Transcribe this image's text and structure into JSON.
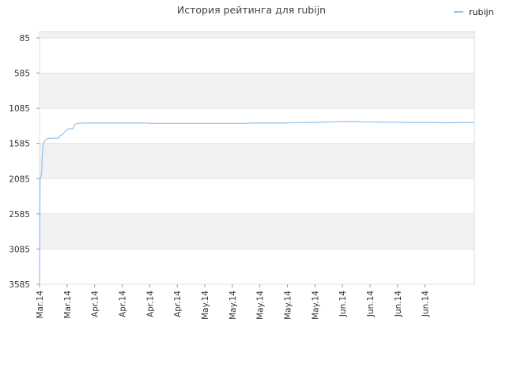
{
  "chart_data": {
    "type": "line",
    "title": "История рейтинга для rubijn",
    "legend": {
      "position": "top-right"
    },
    "series": [
      {
        "name": "rubijn",
        "color": "#90c0f0",
        "points": [
          [
            0,
            3585
          ],
          [
            0.4,
            2760
          ],
          [
            0.8,
            2080
          ],
          [
            2.3,
            2045
          ],
          [
            3.2,
            1960
          ],
          [
            3.4,
            1850
          ],
          [
            4.0,
            1730
          ],
          [
            5.0,
            1590
          ],
          [
            6.0,
            1570
          ],
          [
            8.5,
            1535
          ],
          [
            11.5,
            1515
          ],
          [
            13.0,
            1515
          ],
          [
            18.0,
            1510
          ],
          [
            26.5,
            1510
          ],
          [
            27.5,
            1480
          ],
          [
            32.0,
            1450
          ],
          [
            37.0,
            1400
          ],
          [
            39.0,
            1380
          ],
          [
            42.0,
            1375
          ],
          [
            46.0,
            1375
          ],
          [
            48.0,
            1325
          ],
          [
            52.0,
            1300
          ],
          [
            60.0,
            1295
          ],
          [
            120.0,
            1295
          ],
          [
            150.0,
            1295
          ],
          [
            151.0,
            1300
          ],
          [
            200.0,
            1300
          ],
          [
            260.0,
            1300
          ],
          [
            288.0,
            1300
          ],
          [
            289.0,
            1295
          ],
          [
            340.0,
            1295
          ],
          [
            346.0,
            1290
          ],
          [
            380.0,
            1285
          ],
          [
            395.0,
            1280
          ],
          [
            410.0,
            1275
          ],
          [
            420.0,
            1273
          ],
          [
            440.0,
            1273
          ],
          [
            443.0,
            1278
          ],
          [
            470.0,
            1280
          ],
          [
            490.0,
            1283
          ],
          [
            500.0,
            1285
          ],
          [
            520.0,
            1287
          ],
          [
            550.0,
            1288
          ],
          [
            553.0,
            1291
          ],
          [
            560.0,
            1291
          ],
          [
            590.0,
            1288
          ],
          [
            600.0,
            1288
          ]
        ]
      }
    ],
    "x_count": 600,
    "y_axis": {
      "min": 85,
      "max": 3585,
      "inverted": true,
      "ticks": [
        85,
        585,
        1085,
        1585,
        2085,
        2585,
        3085,
        3585
      ]
    },
    "x_ticks": [
      {
        "pos": 0,
        "label": "Mar.14"
      },
      {
        "pos": 38,
        "label": "Mar.14"
      },
      {
        "pos": 76,
        "label": "Apr.14"
      },
      {
        "pos": 114,
        "label": "Apr.14"
      },
      {
        "pos": 152,
        "label": "Apr.14"
      },
      {
        "pos": 190,
        "label": "Apr.14"
      },
      {
        "pos": 228,
        "label": "May.14"
      },
      {
        "pos": 266,
        "label": "May.14"
      },
      {
        "pos": 304,
        "label": "May.14"
      },
      {
        "pos": 342,
        "label": "May.14"
      },
      {
        "pos": 380,
        "label": "May.14"
      },
      {
        "pos": 418,
        "label": "Jun.14"
      },
      {
        "pos": 456,
        "label": "Jun.14"
      },
      {
        "pos": 494,
        "label": "Jun.14"
      },
      {
        "pos": 532,
        "label": "Jun.14"
      }
    ],
    "grid": true,
    "band_colors": [
      "#f2f2f2",
      "#ffffff"
    ],
    "frame_color": "#dddddd"
  }
}
